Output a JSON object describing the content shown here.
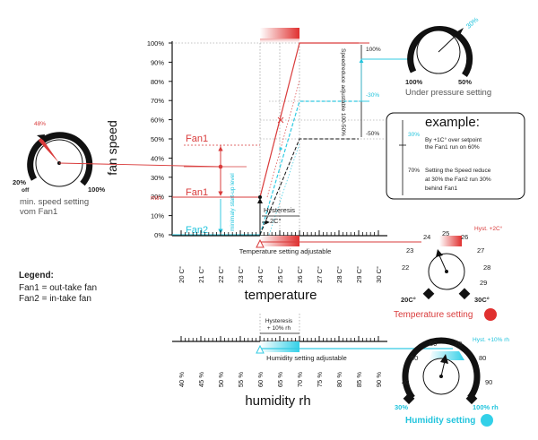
{
  "y_axis": {
    "title": "fan speed",
    "ticks": [
      "100%",
      "90%",
      "80%",
      "70%",
      "60%",
      "50%",
      "40%",
      "30%",
      "20%",
      "10%",
      "0%"
    ]
  },
  "temperature_axis": {
    "title": "temperature",
    "ticks": [
      "20 C°",
      "21 C°",
      "22 C°",
      "23 C°",
      "24 C°",
      "25 C°",
      "26 C°",
      "27 C°",
      "28 C°",
      "29 C°",
      "30 C°"
    ],
    "setting_label": "Temperature setting adjustable"
  },
  "humidity_axis": {
    "title": "humidity rh",
    "ticks": [
      "40 %",
      "45 %",
      "50 %",
      "55 %",
      "60 %",
      "65 %",
      "70 %",
      "75 %",
      "80 %",
      "85 %",
      "90 %"
    ],
    "setting_label": "Humidity setting adjustable",
    "hysteresis_line1": "Hysteresis",
    "hysteresis_line2": "+ 10% rh"
  },
  "chart_labels": {
    "fan1_upper": "Fan1",
    "fan1_lower": "Fan1",
    "fan2": "Fan2",
    "min": "min.",
    "minimal_startup": "minimaly start-up level",
    "hysteresis": "Hysteresis",
    "hysteresis_value": "2C°",
    "speedreduce": "Speedreduce adjustable 100-50%",
    "right_100": "100%",
    "right_30": "-30%",
    "right_50": "-50%"
  },
  "min_speed_knob": {
    "value": "48%",
    "left_label": "20%",
    "off_label": "off",
    "right_label": "100%",
    "caption_line1": "min. speed setting",
    "caption_line2": "vom Fan1"
  },
  "pressure_knob": {
    "value": "30%",
    "left_label": "100%",
    "right_label": "50%",
    "caption": "Under pressure setting"
  },
  "example": {
    "title": "example:",
    "pct_30": "30%",
    "pct_70": "70%",
    "line1": "By +1C° over setpoint",
    "line2": "the Fan1 run on 60%",
    "line3": "Setting the Speed reduce",
    "line4": "at 30% the Fan2 run 30%",
    "line5": "behind Fan1"
  },
  "temperature_knob": {
    "numbers": [
      "22",
      "23",
      "24",
      "25",
      "26",
      "27",
      "28",
      "29"
    ],
    "hyst": "Hyst. +2C°",
    "min_label": "20C°",
    "max_label": "30C°",
    "caption": "Temperature setting"
  },
  "humidity_knob": {
    "numbers": [
      "40",
      "50",
      "60",
      "70",
      "80",
      "90"
    ],
    "hyst": "Hyst. +10% rh",
    "min_label": "30%",
    "max_label": "100% rh",
    "caption": "Humidity setting"
  },
  "legend": {
    "title": "Legend:",
    "line1": "Fan1 = out-take fan",
    "line2": "Fan2 = in-take fan"
  },
  "colors": {
    "fan1": "#d93b3b",
    "fan2": "#22c4dd",
    "dark": "#111111"
  }
}
